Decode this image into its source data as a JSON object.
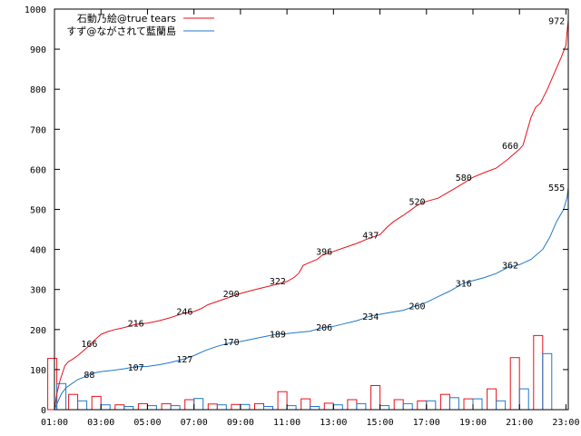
{
  "chart_data": {
    "type": "line",
    "title": "",
    "xlabel": "",
    "ylabel": "",
    "ylim": [
      0,
      1000
    ],
    "y_ticks": [
      0,
      100,
      200,
      300,
      400,
      500,
      600,
      700,
      800,
      900,
      1000
    ],
    "x_range_hours": [
      1,
      23.1
    ],
    "x_ticks": [
      {
        "hour": 1,
        "label": "01:00"
      },
      {
        "hour": 3,
        "label": "03:00"
      },
      {
        "hour": 5,
        "label": "05:00"
      },
      {
        "hour": 7,
        "label": "07:00"
      },
      {
        "hour": 9,
        "label": "09:00"
      },
      {
        "hour": 11,
        "label": "11:00"
      },
      {
        "hour": 13,
        "label": "13:00"
      },
      {
        "hour": 15,
        "label": "15:00"
      },
      {
        "hour": 17,
        "label": "17:00"
      },
      {
        "hour": 19,
        "label": "19:00"
      },
      {
        "hour": 21,
        "label": "21:00"
      },
      {
        "hour": 23,
        "label": "23:00"
      }
    ],
    "legend_position": "top-left",
    "grid": false,
    "series": [
      {
        "name": "石動乃絵@true tears",
        "color": "#e8101a",
        "cumulative": [
          [
            1.0,
            0
          ],
          [
            1.1,
            40
          ],
          [
            1.25,
            75
          ],
          [
            1.45,
            110
          ],
          [
            1.6,
            120
          ],
          [
            1.75,
            125
          ],
          [
            2.0,
            135
          ],
          [
            2.3,
            150
          ],
          [
            2.5,
            160
          ],
          [
            2.75,
            175
          ],
          [
            3.0,
            188
          ],
          [
            3.3,
            195
          ],
          [
            3.6,
            200
          ],
          [
            4.0,
            205
          ],
          [
            4.3,
            210
          ],
          [
            4.5,
            213
          ],
          [
            5.0,
            216
          ],
          [
            5.5,
            222
          ],
          [
            6.0,
            230
          ],
          [
            6.5,
            240
          ],
          [
            7.0,
            245
          ],
          [
            7.3,
            252
          ],
          [
            7.6,
            262
          ],
          [
            8.0,
            270
          ],
          [
            8.5,
            280
          ],
          [
            9.0,
            290
          ],
          [
            9.5,
            298
          ],
          [
            10.0,
            305
          ],
          [
            10.5,
            312
          ],
          [
            11.0,
            320
          ],
          [
            11.3,
            330
          ],
          [
            11.5,
            340
          ],
          [
            11.7,
            360
          ],
          [
            12.0,
            368
          ],
          [
            12.3,
            375
          ],
          [
            12.5,
            385
          ],
          [
            12.75,
            390
          ],
          [
            13.0,
            395
          ],
          [
            13.5,
            405
          ],
          [
            14.0,
            415
          ],
          [
            14.5,
            427
          ],
          [
            15.0,
            437
          ],
          [
            15.3,
            455
          ],
          [
            15.6,
            470
          ],
          [
            16.0,
            485
          ],
          [
            16.3,
            497
          ],
          [
            16.6,
            510
          ],
          [
            17.0,
            520
          ],
          [
            17.5,
            528
          ],
          [
            18.0,
            545
          ],
          [
            18.5,
            562
          ],
          [
            19.0,
            580
          ],
          [
            19.5,
            592
          ],
          [
            20.0,
            603
          ],
          [
            20.5,
            625
          ],
          [
            21.0,
            650
          ],
          [
            21.15,
            660
          ],
          [
            21.3,
            690
          ],
          [
            21.5,
            730
          ],
          [
            21.7,
            755
          ],
          [
            21.9,
            765
          ],
          [
            22.2,
            800
          ],
          [
            22.5,
            840
          ],
          [
            22.8,
            880
          ],
          [
            23.0,
            910
          ],
          [
            23.05,
            945
          ],
          [
            23.1,
            972
          ]
        ],
        "point_labels": [
          {
            "hour": 2.5,
            "value": 166,
            "label": "166"
          },
          {
            "hour": 4.5,
            "value": 216,
            "label": "216"
          },
          {
            "hour": 6.6,
            "value": 246,
            "label": "246"
          },
          {
            "hour": 8.6,
            "value": 290,
            "label": "290"
          },
          {
            "hour": 10.6,
            "value": 322,
            "label": "322"
          },
          {
            "hour": 12.6,
            "value": 396,
            "label": "396"
          },
          {
            "hour": 14.6,
            "value": 437,
            "label": "437"
          },
          {
            "hour": 16.6,
            "value": 520,
            "label": "520"
          },
          {
            "hour": 18.6,
            "value": 580,
            "label": "580"
          },
          {
            "hour": 20.6,
            "value": 660,
            "label": "660"
          },
          {
            "hour": 22.6,
            "value": 972,
            "label": "972"
          }
        ],
        "hourly_counts": [
          {
            "hour": 1.1,
            "value": 128
          },
          {
            "hour": 2.0,
            "value": 38
          },
          {
            "hour": 3.0,
            "value": 33
          },
          {
            "hour": 4.0,
            "value": 12
          },
          {
            "hour": 5.0,
            "value": 15
          },
          {
            "hour": 6.0,
            "value": 15
          },
          {
            "hour": 7.0,
            "value": 25
          },
          {
            "hour": 8.0,
            "value": 14
          },
          {
            "hour": 9.0,
            "value": 13
          },
          {
            "hour": 10.0,
            "value": 15
          },
          {
            "hour": 11.0,
            "value": 45
          },
          {
            "hour": 12.0,
            "value": 27
          },
          {
            "hour": 13.0,
            "value": 16
          },
          {
            "hour": 14.0,
            "value": 25
          },
          {
            "hour": 15.0,
            "value": 60
          },
          {
            "hour": 16.0,
            "value": 25
          },
          {
            "hour": 17.0,
            "value": 22
          },
          {
            "hour": 18.0,
            "value": 38
          },
          {
            "hour": 19.0,
            "value": 27
          },
          {
            "hour": 20.0,
            "value": 52
          },
          {
            "hour": 21.0,
            "value": 130
          },
          {
            "hour": 22.0,
            "value": 185
          }
        ]
      },
      {
        "name": "すず@ながされて藍蘭島",
        "color": "#1f78c8",
        "cumulative": [
          [
            1.0,
            0
          ],
          [
            1.15,
            20
          ],
          [
            1.3,
            40
          ],
          [
            1.5,
            55
          ],
          [
            1.75,
            65
          ],
          [
            2.0,
            75
          ],
          [
            2.3,
            82
          ],
          [
            2.5,
            88
          ],
          [
            2.75,
            92
          ],
          [
            3.0,
            95
          ],
          [
            3.5,
            98
          ],
          [
            4.0,
            102
          ],
          [
            4.5,
            107
          ],
          [
            5.0,
            108
          ],
          [
            5.5,
            112
          ],
          [
            6.0,
            118
          ],
          [
            6.6,
            127
          ],
          [
            7.0,
            135
          ],
          [
            7.5,
            148
          ],
          [
            8.0,
            158
          ],
          [
            8.5,
            166
          ],
          [
            9.0,
            170
          ],
          [
            9.5,
            176
          ],
          [
            10.0,
            182
          ],
          [
            10.6,
            189
          ],
          [
            11.0,
            190
          ],
          [
            11.5,
            193
          ],
          [
            12.0,
            196
          ],
          [
            12.6,
            206
          ],
          [
            13.0,
            208
          ],
          [
            13.5,
            215
          ],
          [
            14.0,
            222
          ],
          [
            14.6,
            234
          ],
          [
            15.0,
            238
          ],
          [
            15.5,
            243
          ],
          [
            16.0,
            248
          ],
          [
            16.6,
            260
          ],
          [
            17.0,
            268
          ],
          [
            17.5,
            282
          ],
          [
            18.0,
            296
          ],
          [
            18.6,
            316
          ],
          [
            19.0,
            322
          ],
          [
            19.5,
            330
          ],
          [
            20.0,
            340
          ],
          [
            20.5,
            355
          ],
          [
            21.0,
            362
          ],
          [
            21.5,
            375
          ],
          [
            22.0,
            400
          ],
          [
            22.3,
            430
          ],
          [
            22.6,
            470
          ],
          [
            22.9,
            500
          ],
          [
            23.05,
            530
          ],
          [
            23.1,
            555
          ]
        ],
        "point_labels": [
          {
            "hour": 2.5,
            "value": 88,
            "label": "88"
          },
          {
            "hour": 4.5,
            "value": 107,
            "label": "107"
          },
          {
            "hour": 6.6,
            "value": 127,
            "label": "127"
          },
          {
            "hour": 8.6,
            "value": 170,
            "label": "170"
          },
          {
            "hour": 10.6,
            "value": 189,
            "label": "189"
          },
          {
            "hour": 12.6,
            "value": 206,
            "label": "206"
          },
          {
            "hour": 14.6,
            "value": 234,
            "label": "234"
          },
          {
            "hour": 16.6,
            "value": 260,
            "label": "260"
          },
          {
            "hour": 18.6,
            "value": 316,
            "label": "316"
          },
          {
            "hour": 20.6,
            "value": 362,
            "label": "362"
          },
          {
            "hour": 22.6,
            "value": 555,
            "label": "555"
          }
        ],
        "hourly_counts": [
          {
            "hour": 1.1,
            "value": 65
          },
          {
            "hour": 2.0,
            "value": 22
          },
          {
            "hour": 3.0,
            "value": 12
          },
          {
            "hour": 4.0,
            "value": 8
          },
          {
            "hour": 5.0,
            "value": 10
          },
          {
            "hour": 6.0,
            "value": 10
          },
          {
            "hour": 7.0,
            "value": 28
          },
          {
            "hour": 8.0,
            "value": 12
          },
          {
            "hour": 9.0,
            "value": 13
          },
          {
            "hour": 10.0,
            "value": 8
          },
          {
            "hour": 11.0,
            "value": 10
          },
          {
            "hour": 12.0,
            "value": 8
          },
          {
            "hour": 13.0,
            "value": 12
          },
          {
            "hour": 14.0,
            "value": 15
          },
          {
            "hour": 15.0,
            "value": 10
          },
          {
            "hour": 16.0,
            "value": 15
          },
          {
            "hour": 17.0,
            "value": 22
          },
          {
            "hour": 18.0,
            "value": 30
          },
          {
            "hour": 19.0,
            "value": 27
          },
          {
            "hour": 20.0,
            "value": 22
          },
          {
            "hour": 21.0,
            "value": 52
          },
          {
            "hour": 22.0,
            "value": 140
          }
        ]
      }
    ]
  }
}
